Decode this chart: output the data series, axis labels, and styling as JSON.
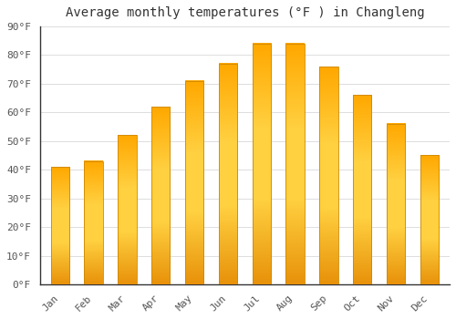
{
  "title": "Average monthly temperatures (°F ) in Changleng",
  "months": [
    "Jan",
    "Feb",
    "Mar",
    "Apr",
    "May",
    "Jun",
    "Jul",
    "Aug",
    "Sep",
    "Oct",
    "Nov",
    "Dec"
  ],
  "values": [
    41,
    43,
    52,
    62,
    71,
    77,
    84,
    84,
    76,
    66,
    56,
    45
  ],
  "bar_color_top": "#FFA500",
  "bar_color_mid": "#FFD000",
  "bar_color_bottom": "#FFA500",
  "bar_edge_color": "#CC8800",
  "background_color": "#ffffff",
  "plot_bg_color": "#ffffff",
  "grid_color": "#dddddd",
  "ylim": [
    0,
    90
  ],
  "yticks": [
    0,
    10,
    20,
    30,
    40,
    50,
    60,
    70,
    80,
    90
  ],
  "title_fontsize": 10,
  "tick_fontsize": 8,
  "font_family": "monospace",
  "bar_width": 0.55
}
